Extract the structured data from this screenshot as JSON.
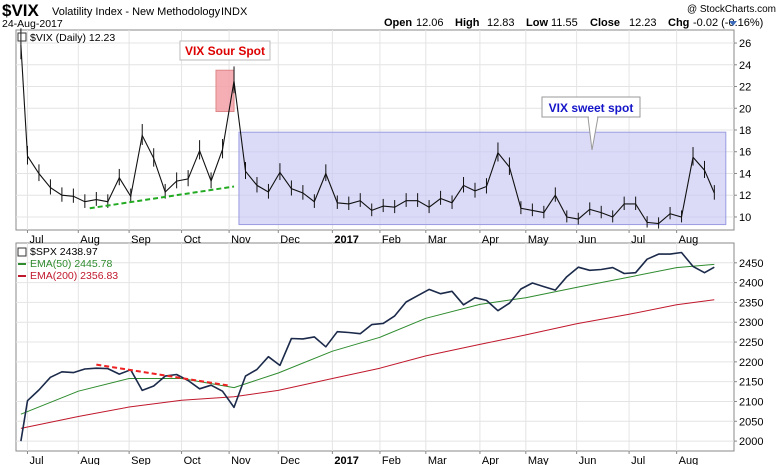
{
  "header": {
    "symbol": "$VIX",
    "name": "Volatility Index - New Methodology",
    "exchange": "INDX",
    "date": "24-Aug-2017",
    "watermark": "@ StockCharts.com",
    "quote": [
      {
        "label": "Open",
        "value": "12.06"
      },
      {
        "label": "High",
        "value": "12.83"
      },
      {
        "label": "Low",
        "value": "11.55"
      },
      {
        "label": "Close",
        "value": "12.23"
      },
      {
        "label": "Chg",
        "value": "-0.02 (-0.16%)"
      }
    ],
    "dropdown_icon": "triangle-down-icon"
  },
  "colors": {
    "price": "#1b2a4a",
    "ema50": "#2e8b2e",
    "ema200": "#c0182c",
    "sour_zone": "#f4a0a8",
    "sweet_zone": "#c8c8f4",
    "sour_text": "#dd0000",
    "sweet_text": "#1414c8",
    "support_line": "#22aa22",
    "resistance_line": "#ee2222",
    "frame": "#888888"
  },
  "chart_data": [
    {
      "type": "line",
      "panel": "top",
      "series": [
        {
          "name": "$VIX (Daily) 12.23",
          "x": [
            "2016-06-27",
            "2016-07-01",
            "2016-07-08",
            "2016-07-15",
            "2016-07-22",
            "2016-07-29",
            "2016-08-05",
            "2016-08-12",
            "2016-08-19",
            "2016-08-26",
            "2016-09-02",
            "2016-09-09",
            "2016-09-16",
            "2016-09-23",
            "2016-09-30",
            "2016-10-07",
            "2016-10-14",
            "2016-10-21",
            "2016-10-28",
            "2016-11-04",
            "2016-11-11",
            "2016-11-18",
            "2016-11-25",
            "2016-12-02",
            "2016-12-09",
            "2016-12-16",
            "2016-12-23",
            "2016-12-30",
            "2017-01-06",
            "2017-01-13",
            "2017-01-20",
            "2017-01-27",
            "2017-02-03",
            "2017-02-10",
            "2017-02-17",
            "2017-02-24",
            "2017-03-03",
            "2017-03-10",
            "2017-03-17",
            "2017-03-24",
            "2017-03-31",
            "2017-04-07",
            "2017-04-14",
            "2017-04-21",
            "2017-04-28",
            "2017-05-05",
            "2017-05-12",
            "2017-05-19",
            "2017-05-26",
            "2017-06-02",
            "2017-06-09",
            "2017-06-16",
            "2017-06-23",
            "2017-06-30",
            "2017-07-07",
            "2017-07-14",
            "2017-07-21",
            "2017-07-28",
            "2017-08-04",
            "2017-08-11",
            "2017-08-18",
            "2017-08-24"
          ],
          "values": [
            25.8,
            15.6,
            14.0,
            12.7,
            12.0,
            11.9,
            11.4,
            11.6,
            11.4,
            13.6,
            11.9,
            17.5,
            15.4,
            12.3,
            13.3,
            13.5,
            16.1,
            13.3,
            16.2,
            22.5,
            14.2,
            12.9,
            12.3,
            14.1,
            12.6,
            12.2,
            11.4,
            14.0,
            11.3,
            11.2,
            11.5,
            10.6,
            11.0,
            10.9,
            11.5,
            11.5,
            10.9,
            11.7,
            11.3,
            12.9,
            12.4,
            12.8,
            15.9,
            14.6,
            10.8,
            10.6,
            10.4,
            12.0,
            10.0,
            9.8,
            10.7,
            10.4,
            10.0,
            11.2,
            11.2,
            9.5,
            9.4,
            10.3,
            10.0,
            15.5,
            14.3,
            12.2
          ]
        }
      ],
      "y_ticks": [
        10,
        12,
        14,
        16,
        18,
        20,
        22,
        24,
        26
      ],
      "ylim": [
        8.8,
        27.2
      ],
      "annotations": [
        {
          "label": "VIX Sour Spot",
          "zone": {
            "x": [
              "2016-10-24",
              "2016-11-04"
            ],
            "y": [
              19.7,
              23.5
            ]
          }
        },
        {
          "label": "VIX sweet spot",
          "zone": {
            "x": [
              "2016-11-07",
              "2017-08-31"
            ],
            "y": [
              9.3,
              17.8
            ]
          }
        }
      ],
      "support_line": {
        "x": [
          "2016-08-08",
          "2016-11-04"
        ],
        "y": [
          10.8,
          12.8
        ]
      }
    },
    {
      "type": "line",
      "panel": "bottom",
      "series": [
        {
          "name": "$SPX 2438.97",
          "x": [
            "2016-06-27",
            "2016-07-01",
            "2016-07-08",
            "2016-07-15",
            "2016-07-22",
            "2016-07-29",
            "2016-08-05",
            "2016-08-12",
            "2016-08-19",
            "2016-08-26",
            "2016-09-02",
            "2016-09-09",
            "2016-09-16",
            "2016-09-23",
            "2016-09-30",
            "2016-10-07",
            "2016-10-14",
            "2016-10-21",
            "2016-10-28",
            "2016-11-04",
            "2016-11-11",
            "2016-11-18",
            "2016-11-25",
            "2016-12-02",
            "2016-12-09",
            "2016-12-16",
            "2016-12-23",
            "2016-12-30",
            "2017-01-06",
            "2017-01-13",
            "2017-01-20",
            "2017-01-27",
            "2017-02-03",
            "2017-02-10",
            "2017-02-17",
            "2017-02-24",
            "2017-03-03",
            "2017-03-10",
            "2017-03-17",
            "2017-03-24",
            "2017-03-31",
            "2017-04-07",
            "2017-04-14",
            "2017-04-21",
            "2017-04-28",
            "2017-05-05",
            "2017-05-12",
            "2017-05-19",
            "2017-05-26",
            "2017-06-02",
            "2017-06-09",
            "2017-06-16",
            "2017-06-23",
            "2017-06-30",
            "2017-07-07",
            "2017-07-14",
            "2017-07-21",
            "2017-07-28",
            "2017-08-04",
            "2017-08-11",
            "2017-08-18",
            "2017-08-24"
          ],
          "values": [
            2000,
            2102,
            2129,
            2161,
            2175,
            2173,
            2182,
            2184,
            2183,
            2169,
            2180,
            2128,
            2139,
            2164,
            2168,
            2153,
            2132,
            2141,
            2126,
            2085,
            2164,
            2181,
            2213,
            2191,
            2259,
            2258,
            2263,
            2238,
            2276,
            2274,
            2271,
            2294,
            2297,
            2316,
            2351,
            2367,
            2383,
            2372,
            2378,
            2344,
            2362,
            2355,
            2329,
            2348,
            2384,
            2399,
            2390,
            2381,
            2415,
            2439,
            2431,
            2433,
            2438,
            2423,
            2425,
            2459,
            2472,
            2472,
            2476,
            2441,
            2425,
            2439
          ]
        },
        {
          "name": "EMA(50) 2445.78",
          "x": [
            "2016-06-27",
            "2016-08-01",
            "2016-09-01",
            "2016-10-03",
            "2016-11-04",
            "2016-12-01",
            "2017-01-03",
            "2017-02-01",
            "2017-03-01",
            "2017-04-03",
            "2017-05-01",
            "2017-06-01",
            "2017-07-03",
            "2017-08-01",
            "2017-08-24"
          ],
          "values": [
            2068,
            2126,
            2158,
            2158,
            2135,
            2172,
            2227,
            2262,
            2310,
            2345,
            2362,
            2388,
            2414,
            2438,
            2446
          ]
        },
        {
          "name": "EMA(200) 2356.83",
          "x": [
            "2016-06-27",
            "2016-08-01",
            "2016-09-01",
            "2016-10-03",
            "2016-11-04",
            "2016-12-01",
            "2017-01-03",
            "2017-02-01",
            "2017-03-01",
            "2017-04-03",
            "2017-05-01",
            "2017-06-01",
            "2017-07-03",
            "2017-08-01",
            "2017-08-24"
          ],
          "values": [
            2032,
            2062,
            2086,
            2103,
            2112,
            2128,
            2158,
            2184,
            2215,
            2244,
            2268,
            2296,
            2320,
            2344,
            2357
          ]
        }
      ],
      "y_ticks": [
        2000,
        2050,
        2100,
        2150,
        2200,
        2250,
        2300,
        2350,
        2400,
        2450
      ],
      "ylim": [
        1975,
        2500
      ],
      "resistance_line": {
        "x": [
          "2016-08-12",
          "2016-11-01"
        ],
        "y": [
          2193,
          2140
        ]
      }
    }
  ],
  "x_axis": {
    "labels": [
      {
        "text": "Jul",
        "date": "2016-07-01",
        "bold": false
      },
      {
        "text": "Aug",
        "date": "2016-08-01",
        "bold": false
      },
      {
        "text": "Sep",
        "date": "2016-09-01",
        "bold": false
      },
      {
        "text": "Oct",
        "date": "2016-10-03",
        "bold": false
      },
      {
        "text": "Nov",
        "date": "2016-11-01",
        "bold": false
      },
      {
        "text": "Dec",
        "date": "2016-12-01",
        "bold": false
      },
      {
        "text": "2017",
        "date": "2017-01-03",
        "bold": true
      },
      {
        "text": "Feb",
        "date": "2017-02-01",
        "bold": false
      },
      {
        "text": "Mar",
        "date": "2017-03-01",
        "bold": false
      },
      {
        "text": "Apr",
        "date": "2017-04-03",
        "bold": false
      },
      {
        "text": "May",
        "date": "2017-05-01",
        "bold": false
      },
      {
        "text": "Jun",
        "date": "2017-06-01",
        "bold": false
      },
      {
        "text": "Jul",
        "date": "2017-07-03",
        "bold": false
      },
      {
        "text": "Aug",
        "date": "2017-08-01",
        "bold": false
      }
    ],
    "range": [
      "2016-06-24",
      "2017-09-05"
    ]
  }
}
